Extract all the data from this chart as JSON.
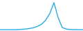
{
  "x": [
    0,
    1,
    2,
    3,
    4,
    5,
    6,
    7,
    8,
    9,
    10,
    11,
    12,
    13,
    14,
    15,
    16,
    17,
    18,
    19,
    20
  ],
  "y": [
    0,
    0,
    0,
    0,
    0,
    0.01,
    0.02,
    0.04,
    0.07,
    0.12,
    0.2,
    0.35,
    0.6,
    1.0,
    0.45,
    0.08,
    0.02,
    0.005,
    0,
    0,
    0
  ],
  "line_color": "#29abe2",
  "background_color": "#ffffff",
  "linewidth": 1.0,
  "xlim": [
    0,
    20
  ],
  "ylim": [
    -0.05,
    1.1
  ]
}
